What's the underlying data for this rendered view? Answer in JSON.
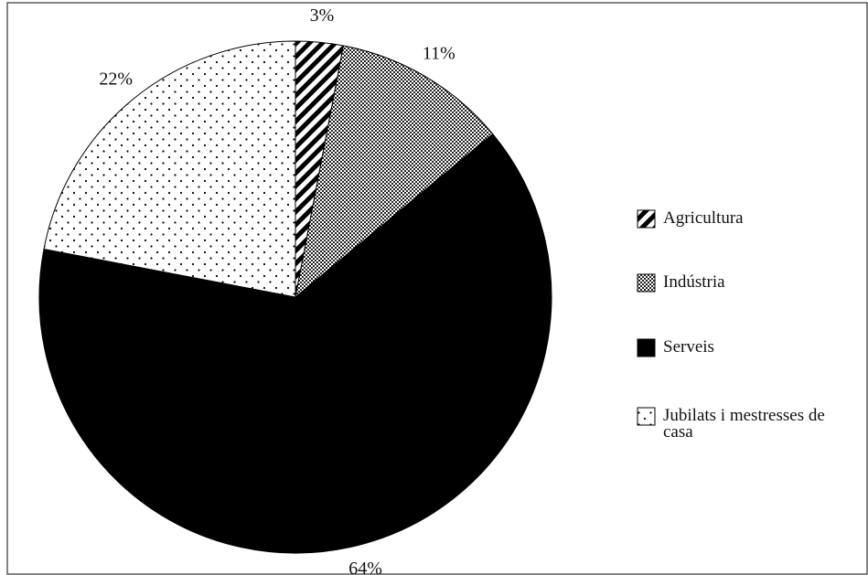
{
  "chart_data": {
    "type": "pie",
    "categories": [
      "Agricultura",
      "Indústria",
      "Serveis",
      "Jubilats i mestresses de casa"
    ],
    "values": [
      3,
      11,
      64,
      22
    ],
    "value_labels": [
      "3%",
      "11%",
      "64%",
      "22%"
    ]
  }
}
